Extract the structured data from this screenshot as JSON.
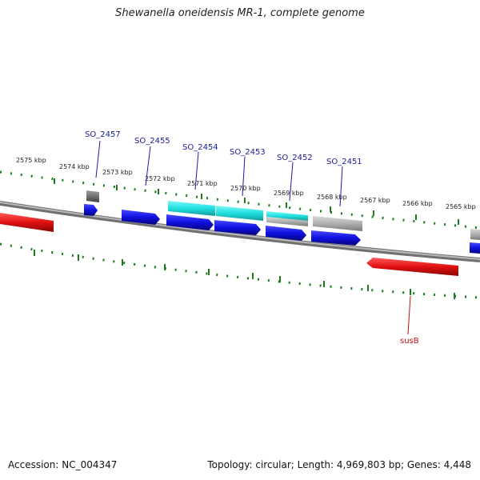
{
  "title": "Shewanella oneidensis MR-1, complete genome",
  "footer": {
    "accession": "Accession: NC_004347",
    "summary": "Topology: circular; Length: 4,969,803 bp; Genes: 4,448"
  },
  "scale_labels": [
    "2575 kbp",
    "2574 kbp",
    "2573 kbp",
    "2572 kbp",
    "2571 kbp",
    "2570 kbp",
    "2569 kbp",
    "2568 kbp",
    "2567 kbp",
    "2566 kbp",
    "2565 kbp"
  ],
  "gene_labels": [
    "SO_2457",
    "SO_2455",
    "SO_2454",
    "SO_2453",
    "SO_2452",
    "SO_2451",
    "susB"
  ],
  "colors": {
    "backbone": "#808080",
    "forward_cds": "#1010e0",
    "reverse_cds": "#e01010",
    "cyan_feature": "#20e0e0",
    "grey_feature": "#b0b0b0",
    "dark_feature": "#707070",
    "ticks": "#1e7a1e",
    "label_blue": "#1a1a9a",
    "label_red": "#c01010"
  }
}
